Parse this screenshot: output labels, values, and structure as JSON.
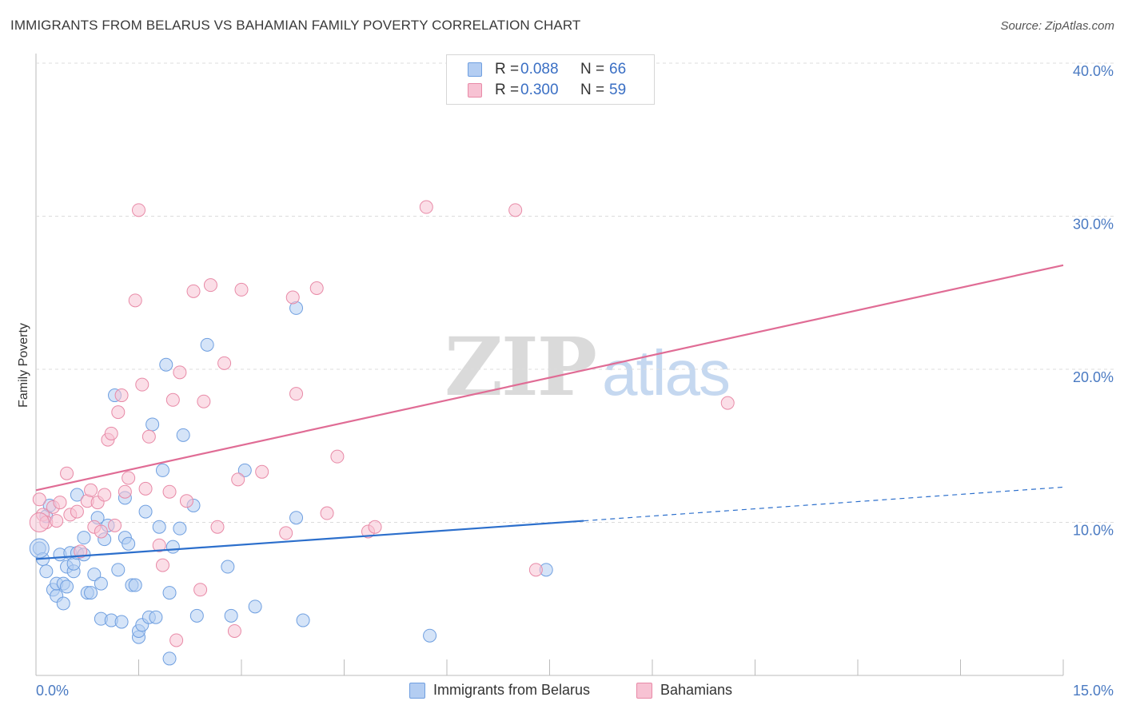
{
  "title": "IMMIGRANTS FROM BELARUS VS BAHAMIAN FAMILY POVERTY CORRELATION CHART",
  "source": "Source: ZipAtlas.com",
  "watermark": {
    "zip": "ZIP",
    "atlas": "atlas"
  },
  "colors": {
    "blue": "#6f9fe0",
    "blue_fill": "#b3cdf2",
    "pink": "#e88aa7",
    "pink_fill": "#f7c2d3",
    "blue_line": "#2c6fcc",
    "pink_line": "#e06c95",
    "tick_text": "#4a7ac2"
  },
  "legend": {
    "rows": [
      {
        "r_label": "R =",
        "r_value": "0.088",
        "n_label": "N =",
        "n_value": "66"
      },
      {
        "r_label": "R =",
        "r_value": "0.300",
        "n_label": "N =",
        "n_value": "59"
      }
    ]
  },
  "bottom_legend": [
    "Immigrants from Belarus",
    "Bahamians"
  ],
  "chart_data": {
    "type": "scatter",
    "title": "IMMIGRANTS FROM BELARUS VS BAHAMIAN FAMILY POVERTY CORRELATION CHART",
    "xlabel": "",
    "ylabel": "Family Poverty",
    "xlim": [
      0,
      15
    ],
    "ylim": [
      0,
      40
    ],
    "x_tick_labels": [
      "0.0%",
      "15.0%"
    ],
    "y_ticks": [
      10,
      20,
      30,
      40
    ],
    "y_tick_labels": [
      "10.0%",
      "20.0%",
      "30.0%",
      "40.0%"
    ],
    "grid": true,
    "series": [
      {
        "name": "Immigrants from Belarus",
        "color": "#6f9fe0",
        "trend": {
          "x0": 0,
          "y0": 7.6,
          "x1": 8.0,
          "y1": 10.1,
          "dash_to_x": 15,
          "dash_to_y": 12.3
        },
        "points": [
          [
            0.05,
            8.3
          ],
          [
            0.1,
            7.6
          ],
          [
            0.15,
            6.8
          ],
          [
            0.15,
            10.4
          ],
          [
            0.2,
            11.1
          ],
          [
            0.25,
            5.6
          ],
          [
            0.3,
            5.2
          ],
          [
            0.3,
            6.0
          ],
          [
            0.35,
            7.9
          ],
          [
            0.4,
            4.7
          ],
          [
            0.4,
            6.0
          ],
          [
            0.45,
            5.8
          ],
          [
            0.45,
            7.1
          ],
          [
            0.5,
            8.0
          ],
          [
            0.55,
            6.8
          ],
          [
            0.55,
            7.3
          ],
          [
            0.6,
            11.8
          ],
          [
            0.6,
            8.0
          ],
          [
            0.7,
            7.9
          ],
          [
            0.7,
            9.0
          ],
          [
            0.75,
            5.4
          ],
          [
            0.8,
            5.4
          ],
          [
            0.85,
            6.6
          ],
          [
            0.9,
            10.3
          ],
          [
            0.95,
            6.0
          ],
          [
            0.95,
            3.7
          ],
          [
            1.0,
            8.9
          ],
          [
            1.05,
            9.8
          ],
          [
            1.1,
            3.6
          ],
          [
            1.15,
            18.3
          ],
          [
            1.2,
            6.9
          ],
          [
            1.25,
            3.5
          ],
          [
            1.3,
            9.0
          ],
          [
            1.3,
            11.6
          ],
          [
            1.35,
            8.6
          ],
          [
            1.4,
            5.9
          ],
          [
            1.45,
            5.9
          ],
          [
            1.5,
            2.5
          ],
          [
            1.5,
            2.9
          ],
          [
            1.55,
            3.3
          ],
          [
            1.6,
            10.7
          ],
          [
            1.65,
            3.8
          ],
          [
            1.7,
            16.4
          ],
          [
            1.75,
            3.8
          ],
          [
            1.8,
            9.7
          ],
          [
            1.85,
            13.4
          ],
          [
            1.9,
            20.3
          ],
          [
            1.95,
            5.4
          ],
          [
            1.95,
            1.1
          ],
          [
            2.0,
            8.4
          ],
          [
            2.1,
            9.6
          ],
          [
            2.15,
            15.7
          ],
          [
            2.3,
            11.1
          ],
          [
            2.35,
            3.9
          ],
          [
            2.5,
            21.6
          ],
          [
            2.8,
            7.1
          ],
          [
            2.85,
            3.9
          ],
          [
            3.05,
            13.4
          ],
          [
            3.2,
            4.5
          ],
          [
            3.8,
            24.0
          ],
          [
            3.8,
            10.3
          ],
          [
            3.9,
            3.6
          ],
          [
            5.75,
            2.6
          ],
          [
            7.45,
            6.9
          ]
        ]
      },
      {
        "name": "Bahamians",
        "color": "#e88aa7",
        "trend": {
          "x0": 0,
          "y0": 12.1,
          "x1": 15,
          "y1": 26.8
        },
        "points": [
          [
            0.05,
            11.5
          ],
          [
            0.1,
            10.5
          ],
          [
            0.15,
            10.0
          ],
          [
            0.25,
            11.0
          ],
          [
            0.3,
            10.1
          ],
          [
            0.35,
            11.3
          ],
          [
            0.45,
            13.2
          ],
          [
            0.5,
            10.5
          ],
          [
            0.6,
            10.7
          ],
          [
            0.65,
            8.1
          ],
          [
            0.75,
            11.4
          ],
          [
            0.8,
            12.1
          ],
          [
            0.85,
            9.7
          ],
          [
            0.9,
            11.3
          ],
          [
            0.95,
            9.4
          ],
          [
            1.0,
            11.8
          ],
          [
            1.05,
            15.4
          ],
          [
            1.1,
            15.8
          ],
          [
            1.15,
            9.8
          ],
          [
            1.2,
            17.2
          ],
          [
            1.25,
            18.3
          ],
          [
            1.3,
            12.0
          ],
          [
            1.35,
            12.9
          ],
          [
            1.45,
            24.5
          ],
          [
            1.5,
            30.4
          ],
          [
            1.55,
            19.0
          ],
          [
            1.6,
            12.2
          ],
          [
            1.65,
            15.6
          ],
          [
            1.8,
            8.5
          ],
          [
            1.85,
            7.2
          ],
          [
            1.95,
            12.0
          ],
          [
            2.0,
            18.0
          ],
          [
            2.05,
            2.3
          ],
          [
            2.1,
            19.8
          ],
          [
            2.2,
            11.4
          ],
          [
            2.3,
            25.1
          ],
          [
            2.4,
            5.6
          ],
          [
            2.45,
            17.9
          ],
          [
            2.55,
            25.5
          ],
          [
            2.65,
            9.7
          ],
          [
            2.75,
            20.4
          ],
          [
            2.9,
            2.9
          ],
          [
            2.95,
            12.8
          ],
          [
            3.0,
            25.2
          ],
          [
            3.3,
            13.3
          ],
          [
            3.65,
            9.3
          ],
          [
            3.75,
            24.7
          ],
          [
            3.8,
            18.4
          ],
          [
            4.1,
            25.3
          ],
          [
            4.25,
            10.6
          ],
          [
            4.4,
            14.3
          ],
          [
            4.85,
            9.4
          ],
          [
            4.95,
            9.7
          ],
          [
            5.7,
            30.6
          ],
          [
            7.0,
            30.4
          ],
          [
            7.3,
            6.9
          ],
          [
            10.1,
            17.8
          ]
        ]
      }
    ]
  }
}
